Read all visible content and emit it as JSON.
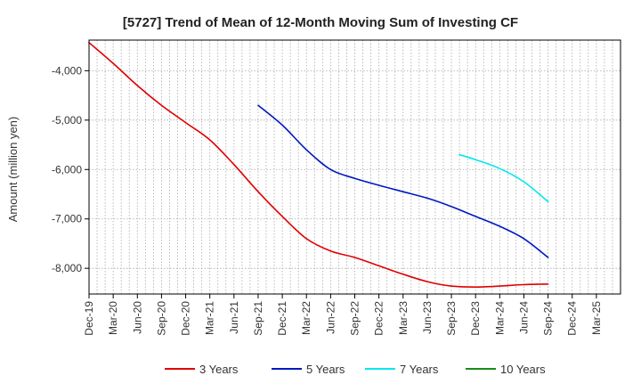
{
  "chart_data": {
    "type": "line",
    "title": "[5727]  Trend of Mean of 12-Month Moving Sum of Investing CF",
    "xlabel": "",
    "ylabel": "Amount (million yen)",
    "ylim": [
      -8520,
      -3380
    ],
    "yticks": [
      -4000,
      -5000,
      -6000,
      -7000,
      -8000
    ],
    "ytick_labels": [
      "-4,000",
      "-5,000",
      "-6,000",
      "-7,000",
      "-8,000"
    ],
    "x_months_range": [
      0,
      66
    ],
    "xtick_labels": [
      "Dec-19",
      "Mar-20",
      "Jun-20",
      "Sep-20",
      "Dec-20",
      "Mar-21",
      "Jun-21",
      "Sep-21",
      "Dec-21",
      "Mar-22",
      "Jun-22",
      "Sep-22",
      "Dec-22",
      "Mar-23",
      "Jun-23",
      "Sep-23",
      "Dec-23",
      "Mar-24",
      "Jun-24",
      "Sep-24",
      "Dec-24",
      "Mar-25"
    ],
    "grid": true,
    "legend_position": "bottom",
    "series": [
      {
        "name": "3 Years",
        "color": "#e00000",
        "x": [
          0,
          3,
          6,
          9,
          12,
          15,
          18,
          21,
          24,
          27,
          30,
          33,
          36,
          39,
          42,
          45,
          48,
          51,
          54,
          57
        ],
        "values": [
          -3430,
          -3850,
          -4300,
          -4700,
          -5050,
          -5400,
          -5900,
          -6450,
          -6950,
          -7400,
          -7650,
          -7780,
          -7950,
          -8120,
          -8270,
          -8360,
          -8380,
          -8360,
          -8330,
          -8320
        ]
      },
      {
        "name": "5 Years",
        "color": "#0018c0",
        "x": [
          21,
          24,
          27,
          30,
          33,
          36,
          39,
          42,
          45,
          48,
          51,
          54,
          57
        ],
        "values": [
          -4700,
          -5100,
          -5600,
          -6000,
          -6180,
          -6320,
          -6450,
          -6580,
          -6750,
          -6950,
          -7150,
          -7400,
          -7780
        ]
      },
      {
        "name": "7 Years",
        "color": "#00e8ee",
        "x": [
          46,
          48,
          51,
          54,
          57
        ],
        "values": [
          -5700,
          -5800,
          -5980,
          -6250,
          -6650
        ]
      },
      {
        "name": "10 Years",
        "color": "#1a8a1a",
        "x": [],
        "values": []
      }
    ]
  }
}
